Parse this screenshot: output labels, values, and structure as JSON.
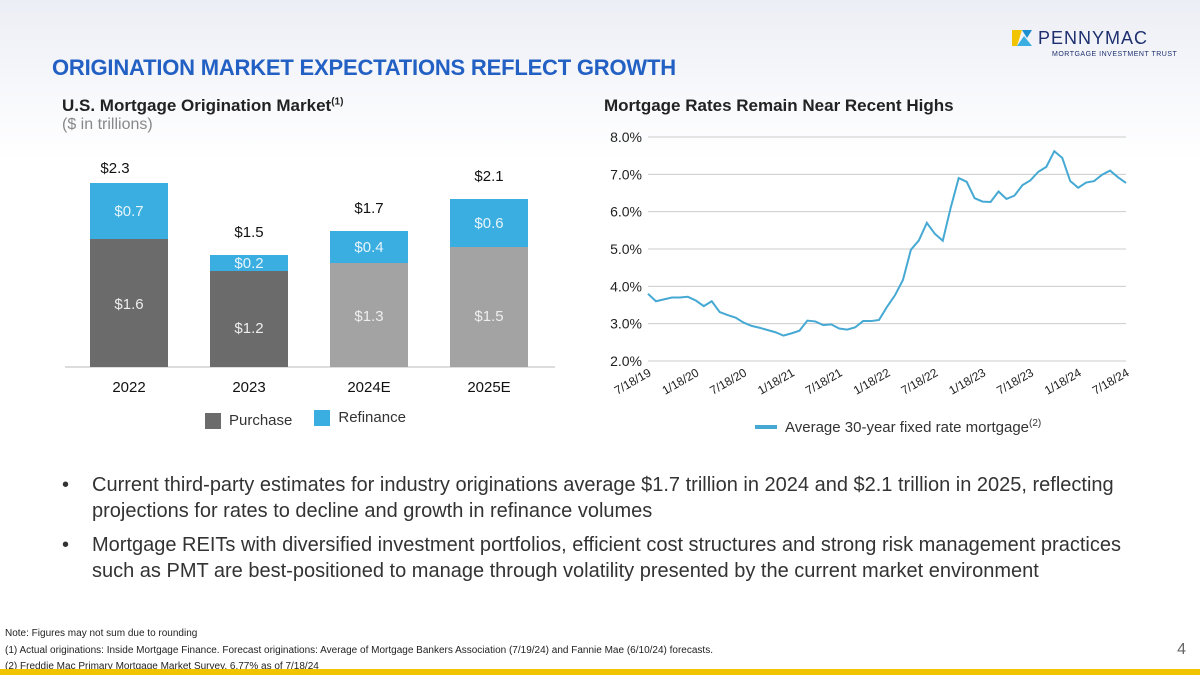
{
  "header": {
    "title": "ORIGINATION MARKET EXPECTATIONS REFLECT GROWTH",
    "logo": {
      "name": "PENNYMAC",
      "tagline": "MORTGAGE INVESTMENT TRUST"
    },
    "page_number": "4"
  },
  "colors": {
    "title": "#2360c4",
    "purchase_actual": "#6b6b6b",
    "purchase_forecast": "#a3a3a3",
    "refinance": "#3aaee0",
    "line": "#46a9d3",
    "footer_bar": "#f2c400"
  },
  "chart_data": [
    {
      "type": "bar",
      "stacked": true,
      "title": "U.S. Mortgage Origination Market",
      "title_sup": "(1)",
      "subtitle": "($ in trillions)",
      "categories": [
        "2022",
        "2023",
        "2024E",
        "2025E"
      ],
      "series": [
        {
          "name": "Purchase",
          "values": [
            1.6,
            1.2,
            1.3,
            1.5
          ],
          "labels": [
            "$1.6",
            "$1.2",
            "$1.3",
            "$1.5"
          ]
        },
        {
          "name": "Refinance",
          "values": [
            0.7,
            0.2,
            0.4,
            0.6
          ],
          "labels": [
            "$0.7",
            "$0.2",
            "$0.4",
            "$0.6"
          ]
        }
      ],
      "totals": [
        2.3,
        1.5,
        1.7,
        2.1
      ],
      "total_labels": [
        "$2.3",
        "$1.5",
        "$1.7",
        "$2.1"
      ],
      "legend": "bottom"
    },
    {
      "type": "line",
      "title": "Mortgage Rates Remain Near Recent Highs",
      "ylim": [
        2,
        8
      ],
      "yticks": [
        "2.0%",
        "3.0%",
        "4.0%",
        "5.0%",
        "6.0%",
        "7.0%",
        "8.0%"
      ],
      "grid": true,
      "xticks": [
        "7/18/19",
        "1/18/20",
        "7/18/20",
        "1/18/21",
        "7/18/21",
        "1/18/22",
        "7/18/22",
        "1/18/23",
        "7/18/23",
        "1/18/24",
        "7/18/24"
      ],
      "legend": "bottom",
      "series": [
        {
          "name": "Average 30-year fixed rate mortgage",
          "name_sup": "(2)",
          "x": [
            "2019-07",
            "2019-08",
            "2019-09",
            "2019-10",
            "2019-11",
            "2019-12",
            "2020-01",
            "2020-02",
            "2020-03",
            "2020-04",
            "2020-05",
            "2020-06",
            "2020-07",
            "2020-08",
            "2020-09",
            "2020-10",
            "2020-11",
            "2020-12",
            "2021-01",
            "2021-02",
            "2021-03",
            "2021-04",
            "2021-05",
            "2021-06",
            "2021-07",
            "2021-08",
            "2021-09",
            "2021-10",
            "2021-11",
            "2021-12",
            "2022-01",
            "2022-02",
            "2022-03",
            "2022-04",
            "2022-05",
            "2022-06",
            "2022-07",
            "2022-08",
            "2022-09",
            "2022-10",
            "2022-11",
            "2022-12",
            "2023-01",
            "2023-02",
            "2023-03",
            "2023-04",
            "2023-05",
            "2023-06",
            "2023-07",
            "2023-08",
            "2023-09",
            "2023-10",
            "2023-11",
            "2023-12",
            "2024-01",
            "2024-02",
            "2024-03",
            "2024-04",
            "2024-05",
            "2024-06",
            "2024-07"
          ],
          "y": [
            3.8,
            3.6,
            3.65,
            3.7,
            3.7,
            3.72,
            3.62,
            3.47,
            3.6,
            3.31,
            3.23,
            3.16,
            3.03,
            2.94,
            2.89,
            2.83,
            2.77,
            2.68,
            2.74,
            2.81,
            3.08,
            3.06,
            2.96,
            2.98,
            2.87,
            2.84,
            2.9,
            3.07,
            3.07,
            3.1,
            3.45,
            3.76,
            4.17,
            4.98,
            5.23,
            5.7,
            5.41,
            5.22,
            6.11,
            6.9,
            6.8,
            6.36,
            6.27,
            6.26,
            6.54,
            6.34,
            6.43,
            6.71,
            6.84,
            7.07,
            7.2,
            7.62,
            7.44,
            6.82,
            6.64,
            6.78,
            6.82,
            6.99,
            7.1,
            6.92,
            6.77
          ]
        }
      ]
    }
  ],
  "bullets": [
    "Current third-party estimates for industry originations average $1.7 trillion in 2024 and $2.1 trillion in 2025, reflecting projections for rates to decline and growth in refinance volumes",
    "Mortgage REITs with diversified investment portfolios, efficient cost structures and strong risk management practices such as PMT are best-positioned to manage through volatility presented by the current market environment"
  ],
  "footnotes": [
    "Note: Figures may not sum due to rounding",
    "(1) Actual originations: Inside Mortgage Finance. Forecast originations: Average of Mortgage Bankers Association (7/19/24) and Fannie Mae (6/10/24) forecasts.",
    "(2) Freddie Mac Primary Mortgage Market Survey. 6.77% as of 7/18/24"
  ]
}
